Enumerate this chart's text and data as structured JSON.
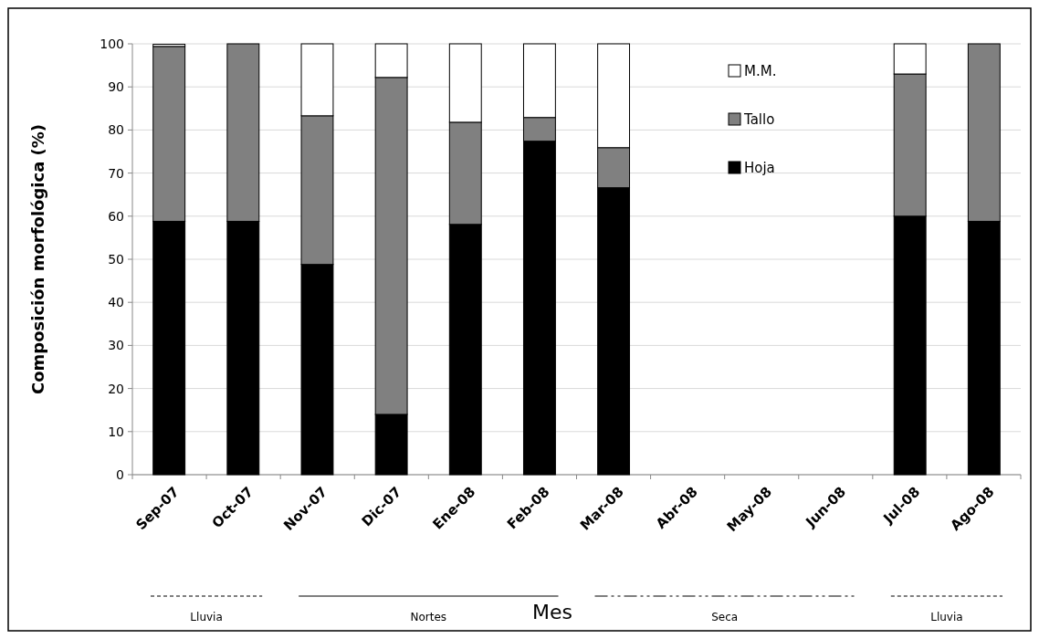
{
  "chart_data": {
    "type": "bar",
    "stacked": true,
    "ylabel": "Composición morfológica (%)",
    "xlabel": "Mes",
    "categories": [
      "Sep-07",
      "Oct-07",
      "Nov-07",
      "Dic-07",
      "Ene-08",
      "Feb-08",
      "Mar-08",
      "Abr-08",
      "May-08",
      "Jun-08",
      "Jul-08",
      "Ago-08"
    ],
    "series": [
      {
        "name": "Hoja",
        "color": "#000000",
        "values": [
          58.8,
          58.8,
          48.8,
          14,
          58.1,
          77.4,
          66.6,
          null,
          null,
          null,
          60,
          58.8
        ]
      },
      {
        "name": "Tallo",
        "color": "#808080",
        "values": [
          40.6,
          41.2,
          34.5,
          78.2,
          23.7,
          5.5,
          9.3,
          null,
          null,
          null,
          33,
          41.2
        ]
      },
      {
        "name": "M.M.",
        "color": "#ffffff",
        "values": [
          0.5,
          0,
          16.7,
          7.8,
          18.2,
          17.1,
          24.1,
          null,
          null,
          null,
          7,
          0
        ]
      }
    ],
    "ylim": [
      0,
      100
    ],
    "yticks": [
      0,
      10,
      20,
      30,
      40,
      50,
      60,
      70,
      80,
      90,
      100
    ],
    "grid": "y",
    "legend": "top right",
    "annotations": [
      "Lluvia",
      "Nortes",
      "Seca",
      "Lluvia"
    ]
  }
}
